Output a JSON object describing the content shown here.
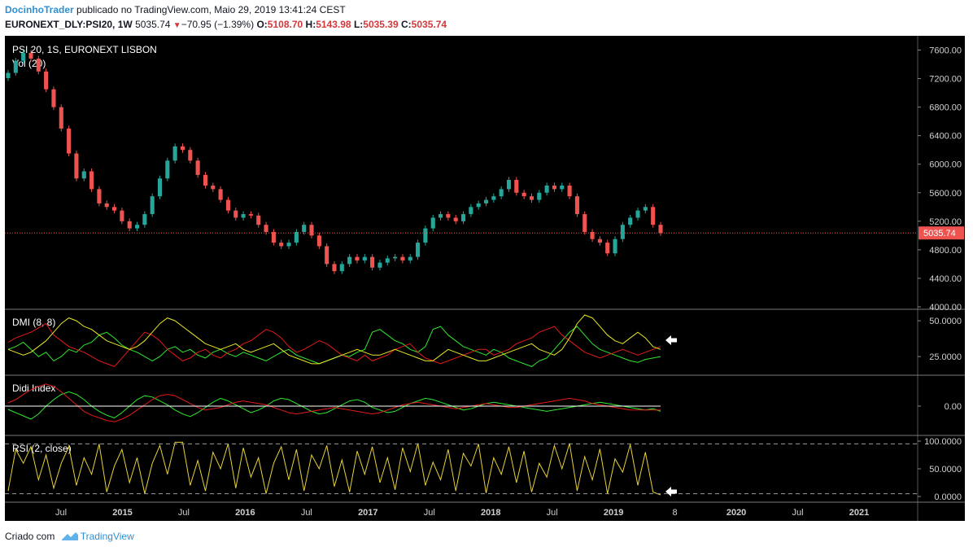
{
  "header": {
    "author": "DocinhoTrader",
    "published_text": " publicado no TradingView.com, Maio 29, 2019 13:41:24 CEST",
    "symbol_line": "EURONEXT_DLY:PSI20, 1W",
    "price": "5035.74",
    "change": "−70.95 (−1.39%)",
    "open_label": "O:",
    "open": "5108.70",
    "high_label": "H:",
    "high": "5143.98",
    "low_label": "L:",
    "low": "5035.39",
    "close_label": "C:",
    "close": "5035.74"
  },
  "footer": {
    "created_text": "Criado com",
    "brand": "TradingView"
  },
  "colors": {
    "background": "#000000",
    "candle_up": "#26a69a",
    "candle_down": "#ef5350",
    "dmi_plus": "#2ee82e",
    "dmi_minus": "#e41a1a",
    "adx": "#e8e823",
    "rsi": "#e8d23a",
    "price_label_bg": "#ef5350",
    "guide": "#ffffff"
  },
  "icons": {
    "arrow": "left-arrow-icon",
    "logo": "tradingview-logo-icon"
  },
  "chart_data": [
    {
      "type": "candlestick",
      "title": "PSI 20, 1S, EURONEXT LISBON",
      "subtitle": "Vol (20)",
      "ylim": [
        4000,
        7800
      ],
      "y_ticks": [
        "7600.00",
        "7200.00",
        "6800.00",
        "6400.00",
        "6000.00",
        "5600.00",
        "5200.00",
        "4800.00",
        "4400.00",
        "4000.00"
      ],
      "last_price": 5035.74,
      "last_price_label": "5035.74",
      "x_ticks": [
        "Jul",
        "2015",
        "Jul",
        "2016",
        "Jul",
        "2017",
        "Jul",
        "2018",
        "Jul",
        "2019",
        "8",
        "2020",
        "Jul",
        "2021"
      ],
      "close_series": [
        7280,
        7450,
        7560,
        7480,
        7300,
        7050,
        6800,
        6500,
        6150,
        5800,
        5900,
        5650,
        5450,
        5400,
        5350,
        5200,
        5100,
        5150,
        5300,
        5550,
        5800,
        6050,
        6250,
        6200,
        6050,
        5850,
        5700,
        5650,
        5500,
        5350,
        5250,
        5300,
        5280,
        5150,
        5050,
        4900,
        4850,
        4900,
        5050,
        5150,
        5000,
        4850,
        4600,
        4500,
        4600,
        4700,
        4650,
        4700,
        4550,
        4620,
        4680,
        4700,
        4650,
        4700,
        4900,
        5100,
        5250,
        5300,
        5250,
        5200,
        5300,
        5400,
        5450,
        5500,
        5550,
        5650,
        5780,
        5600,
        5550,
        5500,
        5600,
        5700,
        5650,
        5700,
        5550,
        5300,
        5050,
        4950,
        4900,
        4750,
        4950,
        5150,
        5250,
        5350,
        5400,
        5150,
        5035
      ]
    },
    {
      "type": "line",
      "title": "DMI (8, 8)",
      "ylim": [
        12,
        58
      ],
      "y_ticks": [
        "50.0000",
        "25.0000"
      ],
      "series": [
        {
          "name": "+DI",
          "values": [
            30,
            32,
            35,
            30,
            25,
            28,
            22,
            25,
            30,
            28,
            33,
            35,
            40,
            42,
            38,
            33,
            30,
            28,
            25,
            22,
            25,
            30,
            32,
            28,
            30,
            26,
            24,
            28,
            30,
            27,
            25,
            28,
            26,
            24,
            22,
            25,
            28,
            30,
            26,
            24,
            22,
            20,
            22,
            24,
            26,
            25,
            28,
            30,
            42,
            44,
            40,
            36,
            34,
            30,
            28,
            32,
            44,
            46,
            40,
            36,
            32,
            30,
            28,
            26,
            30,
            28,
            24,
            22,
            20,
            18,
            22,
            24,
            30,
            36,
            42,
            46,
            40,
            34,
            30,
            28,
            26,
            24,
            22,
            21,
            23,
            24,
            25
          ]
        },
        {
          "name": "−DI",
          "values": [
            35,
            38,
            40,
            42,
            45,
            48,
            40,
            36,
            32,
            30,
            28,
            25,
            22,
            20,
            18,
            24,
            30,
            36,
            42,
            40,
            36,
            30,
            26,
            22,
            24,
            28,
            30,
            26,
            24,
            28,
            30,
            34,
            36,
            40,
            44,
            42,
            38,
            32,
            28,
            30,
            33,
            36,
            34,
            30,
            26,
            24,
            22,
            26,
            22,
            24,
            26,
            30,
            32,
            34,
            28,
            24,
            22,
            20,
            22,
            24,
            26,
            28,
            30,
            30,
            26,
            28,
            30,
            34,
            36,
            38,
            42,
            44,
            46,
            40,
            36,
            32,
            28,
            26,
            24,
            26,
            28,
            30,
            28,
            26,
            28,
            30,
            32
          ]
        },
        {
          "name": "ADX",
          "values": [
            30,
            28,
            26,
            28,
            32,
            36,
            42,
            48,
            52,
            50,
            46,
            44,
            40,
            36,
            34,
            32,
            30,
            32,
            36,
            42,
            48,
            52,
            50,
            46,
            42,
            38,
            34,
            32,
            30,
            32,
            34,
            30,
            28,
            30,
            32,
            34,
            30,
            26,
            24,
            22,
            20,
            20,
            22,
            24,
            26,
            28,
            30,
            28,
            26,
            26,
            28,
            30,
            28,
            26,
            24,
            22,
            22,
            26,
            30,
            28,
            26,
            24,
            22,
            22,
            24,
            26,
            28,
            30,
            32,
            34,
            30,
            28,
            26,
            30,
            38,
            48,
            54,
            52,
            46,
            40,
            36,
            34,
            38,
            42,
            38,
            32,
            30
          ]
        }
      ]
    },
    {
      "type": "line",
      "title": "Didi Index",
      "ylim": [
        -40,
        40
      ],
      "y_ticks": [
        "0.00"
      ],
      "series": [
        {
          "name": "short",
          "values": [
            -5,
            -10,
            -15,
            -20,
            -12,
            0,
            10,
            18,
            22,
            18,
            10,
            0,
            -8,
            -14,
            -18,
            -10,
            0,
            10,
            16,
            14,
            8,
            2,
            -6,
            -12,
            -16,
            -10,
            -2,
            6,
            12,
            8,
            2,
            -4,
            -10,
            -6,
            0,
            8,
            12,
            10,
            4,
            -2,
            -8,
            -12,
            -10,
            -4,
            2,
            8,
            10,
            6,
            -2,
            -6,
            -10,
            -8,
            -2,
            4,
            8,
            12,
            10,
            6,
            2,
            -2,
            -6,
            -4,
            0,
            4,
            6,
            4,
            2,
            0,
            -2,
            -4,
            -6,
            -8,
            -6,
            -4,
            -2,
            0,
            2,
            4,
            6,
            4,
            2,
            0,
            -2,
            -4,
            -6,
            -4,
            -8
          ]
        },
        {
          "name": "long",
          "values": [
            5,
            10,
            18,
            25,
            30,
            34,
            30,
            22,
            12,
            2,
            -8,
            -14,
            -18,
            -22,
            -24,
            -20,
            -14,
            -6,
            2,
            10,
            16,
            18,
            16,
            10,
            4,
            -2,
            -6,
            -4,
            -2,
            2,
            6,
            8,
            6,
            4,
            2,
            -2,
            -6,
            -10,
            -12,
            -10,
            -8,
            -6,
            -4,
            -2,
            -4,
            -6,
            -8,
            -10,
            -12,
            -10,
            -6,
            -2,
            2,
            4,
            6,
            4,
            2,
            0,
            -2,
            -4,
            -2,
            0,
            2,
            4,
            2,
            0,
            -2,
            -2,
            0,
            2,
            4,
            6,
            8,
            10,
            12,
            10,
            8,
            4,
            2,
            0,
            -2,
            -4,
            -6,
            -6,
            -6,
            -6,
            -6
          ]
        }
      ]
    },
    {
      "type": "line",
      "title": "RSI (2, close)",
      "ylim": [
        0,
        100
      ],
      "y_ticks": [
        "100.0000",
        "50.0000",
        "0.0000"
      ],
      "bands": [
        95,
        5
      ],
      "series": [
        {
          "name": "RSI",
          "values": [
            10,
            85,
            60,
            90,
            30,
            75,
            15,
            60,
            90,
            20,
            70,
            40,
            95,
            8,
            55,
            85,
            25,
            70,
            5,
            60,
            92,
            40,
            98,
            98,
            20,
            65,
            10,
            80,
            50,
            95,
            15,
            88,
            35,
            70,
            5,
            60,
            90,
            30,
            85,
            10,
            75,
            50,
            92,
            18,
            66,
            8,
            82,
            40,
            90,
            25,
            70,
            12,
            88,
            45,
            96,
            20,
            62,
            30,
            85,
            10,
            78,
            55,
            95,
            6,
            70,
            40,
            90,
            25,
            82,
            8,
            60,
            35,
            92,
            50,
            96,
            10,
            72,
            30,
            86,
            5,
            68,
            44,
            94,
            20,
            80,
            8,
            3
          ]
        }
      ]
    }
  ]
}
